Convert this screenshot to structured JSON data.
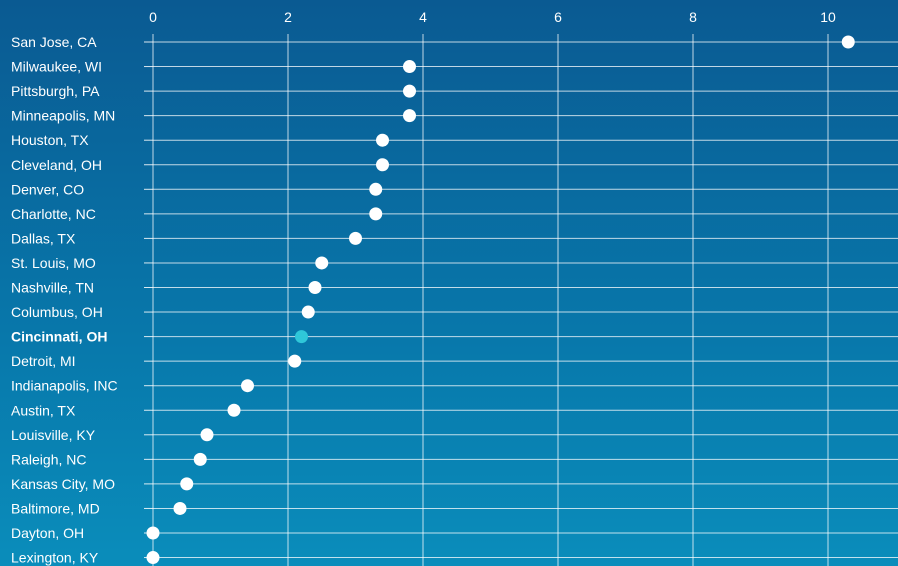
{
  "chart_data": {
    "type": "scatter",
    "title": "",
    "xlabel": "",
    "ylabel": "",
    "xlim": [
      0,
      10.5
    ],
    "x_ticks": [
      0,
      2,
      4,
      6,
      8,
      10
    ],
    "grid": true,
    "categories": [
      "San Jose, CA",
      "Milwaukee, WI",
      "Pittsburgh, PA",
      "Minneapolis, MN",
      "Houston, TX",
      "Cleveland, OH",
      "Denver, CO",
      "Charlotte, NC",
      "Dallas, TX",
      "St. Louis, MO",
      "Nashville, TN",
      "Columbus, OH",
      "Cincinnati, OH",
      "Detroit, MI",
      "Indianapolis, INC",
      "Austin, TX",
      "Louisville, KY",
      "Raleigh, NC",
      "Kansas City, MO",
      "Baltimore, MD",
      "Dayton, OH",
      "Lexington, KY"
    ],
    "values": [
      10.3,
      3.8,
      3.8,
      3.8,
      3.4,
      3.4,
      3.3,
      3.3,
      3.0,
      2.5,
      2.4,
      2.3,
      2.2,
      2.1,
      1.4,
      1.2,
      0.8,
      0.7,
      0.5,
      0.4,
      0.0,
      0.0
    ],
    "highlight": "Cincinnati, OH",
    "colors": {
      "background_top": "#0a5a92",
      "background_bottom": "#0a8dbb",
      "point": "#ffffff",
      "highlight": "#2fc7d9",
      "text": "#ffffff"
    }
  }
}
